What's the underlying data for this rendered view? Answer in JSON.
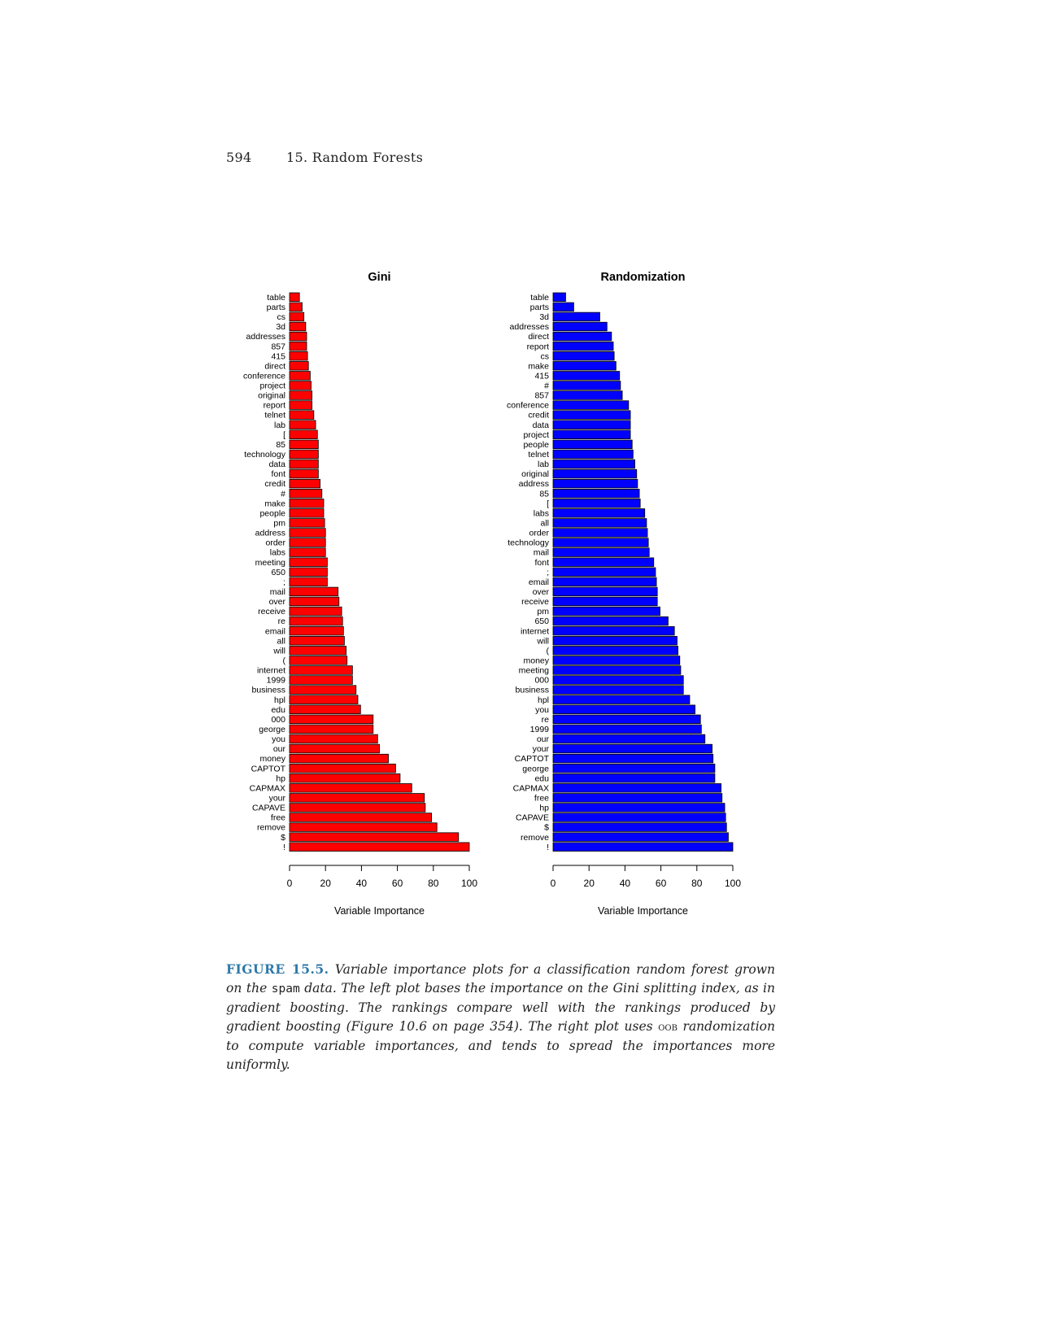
{
  "header": {
    "page_number": "594",
    "chapter": "15.  Random Forests"
  },
  "colors": {
    "gini_bar": "#ff0000",
    "randomization_bar": "#0000ff",
    "bar_outline": "#000000",
    "caption_label": "#2f79a8"
  },
  "chart_data": [
    {
      "type": "bar",
      "orientation": "horizontal",
      "title": "Gini",
      "xlabel": "Variable Importance",
      "ylabel": "",
      "xlim": [
        0,
        100
      ],
      "xticks": [
        "0",
        "20",
        "40",
        "60",
        "80",
        "100"
      ],
      "categories": [
        "table",
        "parts",
        "cs",
        "3d",
        "addresses",
        "857",
        "415",
        "direct",
        "conference",
        "project",
        "original",
        "report",
        "telnet",
        "lab",
        "[",
        "85",
        "technology",
        "data",
        "font",
        "credit",
        "#",
        "make",
        "people",
        "pm",
        "address",
        "order",
        "labs",
        "meeting",
        "650",
        ";",
        "mail",
        "over",
        "receive",
        "re",
        "email",
        "all",
        "will",
        "(",
        "internet",
        "1999",
        "business",
        "hpl",
        "edu",
        "000",
        "george",
        "you",
        "our",
        "money",
        "CAPTOT",
        "hp",
        "CAPMAX",
        "your",
        "CAPAVE",
        "free",
        "remove",
        "$",
        "!"
      ],
      "values": [
        5.5,
        7,
        8,
        9,
        9.5,
        9.5,
        10,
        10.5,
        11.5,
        12,
        12.5,
        12.5,
        13.5,
        14.5,
        15.5,
        16,
        16,
        16,
        16,
        17,
        18,
        19,
        19,
        19.5,
        20,
        20,
        20,
        21,
        21,
        21,
        27,
        27.5,
        29,
        29.5,
        30,
        30.5,
        31.5,
        32,
        35,
        35,
        37,
        38,
        39.5,
        46.5,
        46.5,
        49,
        50,
        55,
        59,
        61.5,
        68,
        75,
        75.5,
        79,
        82,
        94,
        100
      ]
    },
    {
      "type": "bar",
      "orientation": "horizontal",
      "title": "Randomization",
      "xlabel": "Variable Importance",
      "ylabel": "",
      "xlim": [
        0,
        100
      ],
      "xticks": [
        "0",
        "20",
        "40",
        "60",
        "80",
        "100"
      ],
      "categories": [
        "table",
        "parts",
        "3d",
        "addresses",
        "direct",
        "report",
        "cs",
        "make",
        "415",
        "#",
        "857",
        "conference",
        "credit",
        "data",
        "project",
        "people",
        "telnet",
        "lab",
        "original",
        "address",
        "85",
        "[",
        "labs",
        "all",
        "order",
        "technology",
        "mail",
        "font",
        ";",
        "email",
        "over",
        "receive",
        "pm",
        "650",
        "internet",
        "will",
        "(",
        "money",
        "meeting",
        "000",
        "business",
        "hpl",
        "you",
        "re",
        "1999",
        "our",
        "your",
        "CAPTOT",
        "george",
        "edu",
        "CAPMAX",
        "free",
        "hp",
        "CAPAVE",
        "$",
        "remove",
        "!"
      ],
      "values": [
        7,
        11.5,
        26,
        30,
        32.5,
        33.5,
        34,
        35,
        37,
        37.5,
        38.5,
        42,
        43,
        43,
        43,
        44,
        44.5,
        45.5,
        46.5,
        47,
        48,
        48.5,
        51,
        52,
        52.5,
        53,
        53.5,
        56,
        57,
        57.5,
        58,
        58,
        59.5,
        64,
        67.5,
        69,
        69.5,
        70.5,
        71,
        72.5,
        72.5,
        76,
        79,
        82,
        82.5,
        84.5,
        88.5,
        89,
        90,
        90,
        93.5,
        94,
        95.5,
        96,
        96.5,
        97.5,
        100
      ]
    }
  ],
  "caption": {
    "label": "FIGURE 15.5.",
    "t1": " Variable importance plots for a classification random forest grown on the ",
    "code": "spam",
    "t2": " data. The left plot bases the importance on the Gini splitting index, as in gradient boosting. The rankings compare well with the rankings produced by gradient boosting (Figure 10.6 on page 354). The right plot uses ",
    "sc": "oob",
    "t3": " randomization to compute variable importances, and tends to spread the importances more uniformly."
  }
}
